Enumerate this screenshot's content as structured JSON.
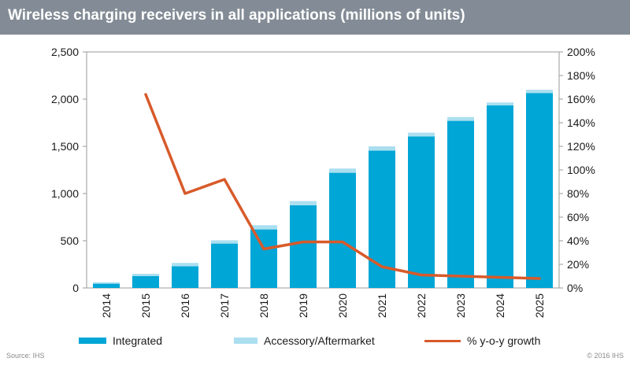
{
  "header": {
    "title": "Wireless charging receivers in all applications (millions of units)"
  },
  "colors": {
    "integrated": "#00a6d6",
    "accessory": "#abdff0",
    "growth": "#d85a2a",
    "header_bg": "#838c96"
  },
  "chart_data": {
    "type": "bar",
    "stacked": true,
    "categories": [
      "2014",
      "2015",
      "2016",
      "2017",
      "2018",
      "2019",
      "2020",
      "2021",
      "2022",
      "2023",
      "2024",
      "2025"
    ],
    "series": [
      {
        "name": "Integrated",
        "axis": "left",
        "type": "bar",
        "values": [
          45,
          125,
          230,
          470,
          620,
          875,
          1220,
          1455,
          1605,
          1770,
          1935,
          2065
        ]
      },
      {
        "name": "Accessory/Aftermarket",
        "axis": "left",
        "type": "bar",
        "values": [
          15,
          25,
          35,
          35,
          45,
          45,
          45,
          45,
          40,
          40,
          30,
          35
        ]
      },
      {
        "name": "% y-o-y growth",
        "axis": "right",
        "type": "line",
        "values": [
          null,
          164,
          80,
          92,
          33,
          39,
          39,
          18,
          11,
          10,
          9,
          8
        ]
      }
    ],
    "y_left": {
      "min": 0,
      "max": 2500,
      "ticks": [
        "0",
        "500",
        "1,000",
        "1,500",
        "2,000",
        "2,500"
      ]
    },
    "y_right": {
      "min": 0,
      "max": 200,
      "ticks": [
        "0%",
        "20%",
        "40%",
        "60%",
        "80%",
        "100%",
        "120%",
        "140%",
        "160%",
        "180%",
        "200%"
      ]
    },
    "legend_position": "bottom",
    "grid": false
  },
  "legend": {
    "integrated": "Integrated",
    "accessory": "Accessory/Aftermarket",
    "growth": "% y-o-y growth"
  },
  "footer": {
    "source": "Source: IHS",
    "copyright": "© 2016 IHS"
  }
}
